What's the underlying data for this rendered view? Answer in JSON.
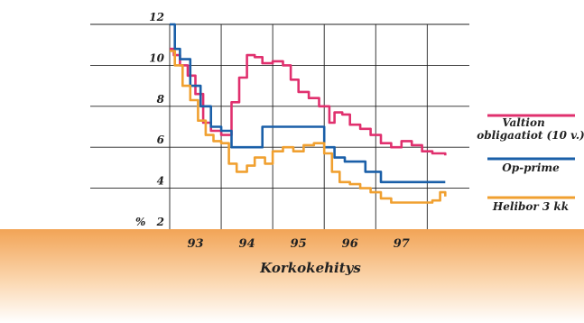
{
  "chart_data": {
    "type": "line",
    "title": "Korkokehitys",
    "ylabel": "%",
    "ylim": [
      2,
      12
    ],
    "yticks": [
      2,
      4,
      6,
      8,
      10,
      12
    ],
    "xlim": [
      92.5,
      97.95
    ],
    "xticks": [
      93,
      94,
      95,
      96,
      97
    ],
    "grid": true,
    "legend_position": "right",
    "series": [
      {
        "name": "Valtion obligaatiot (10 v.)",
        "color": "#e0306e",
        "x": [
          92.5,
          92.58,
          92.7,
          92.85,
          93.0,
          93.15,
          93.3,
          93.5,
          93.7,
          93.85,
          94.0,
          94.15,
          94.3,
          94.5,
          94.7,
          94.85,
          95.0,
          95.2,
          95.4,
          95.6,
          95.7,
          95.85,
          96.0,
          96.2,
          96.4,
          96.6,
          96.8,
          97.0,
          97.2,
          97.4,
          97.6,
          97.85
        ],
        "values": [
          10.8,
          10.5,
          10.0,
          9.5,
          8.6,
          7.2,
          6.8,
          6.6,
          8.2,
          9.4,
          10.5,
          10.4,
          10.1,
          10.2,
          10.0,
          9.3,
          8.7,
          8.4,
          8.0,
          7.2,
          7.7,
          7.6,
          7.1,
          6.9,
          6.6,
          6.2,
          6.0,
          6.3,
          6.1,
          5.8,
          5.7,
          5.6
        ]
      },
      {
        "name": "Op-prime",
        "color": "#1a5fa8",
        "x": [
          92.5,
          92.6,
          92.7,
          92.9,
          93.1,
          93.3,
          93.5,
          93.7,
          94.0,
          94.3,
          94.6,
          95.0,
          95.3,
          95.5,
          95.7,
          95.9,
          96.1,
          96.3,
          96.6,
          96.9,
          97.2,
          97.5,
          97.85
        ],
        "values": [
          12.0,
          10.8,
          10.3,
          9.0,
          8.0,
          7.0,
          6.8,
          6.0,
          6.0,
          7.0,
          7.0,
          7.0,
          7.0,
          6.0,
          5.5,
          5.3,
          5.3,
          4.8,
          4.3,
          4.3,
          4.3,
          4.3,
          4.3
        ]
      },
      {
        "name": "Helibor 3 kk",
        "color": "#f0a030",
        "x": [
          92.5,
          92.6,
          92.75,
          92.9,
          93.05,
          93.2,
          93.35,
          93.5,
          93.65,
          93.8,
          94.0,
          94.15,
          94.35,
          94.5,
          94.7,
          94.9,
          95.1,
          95.3,
          95.5,
          95.65,
          95.8,
          96.0,
          96.2,
          96.4,
          96.6,
          96.8,
          97.0,
          97.2,
          97.4,
          97.6,
          97.75,
          97.85
        ],
        "values": [
          10.7,
          10.0,
          9.0,
          8.3,
          7.3,
          6.6,
          6.3,
          6.2,
          5.2,
          4.8,
          5.1,
          5.5,
          5.2,
          5.8,
          6.0,
          5.8,
          6.1,
          6.2,
          5.7,
          4.8,
          4.3,
          4.2,
          4.0,
          3.8,
          3.5,
          3.3,
          3.3,
          3.3,
          3.3,
          3.4,
          3.8,
          3.6
        ]
      }
    ]
  },
  "colors": {
    "band_top": "#f2a456",
    "band_bottom": "#ffffff",
    "grid": "#222222"
  }
}
